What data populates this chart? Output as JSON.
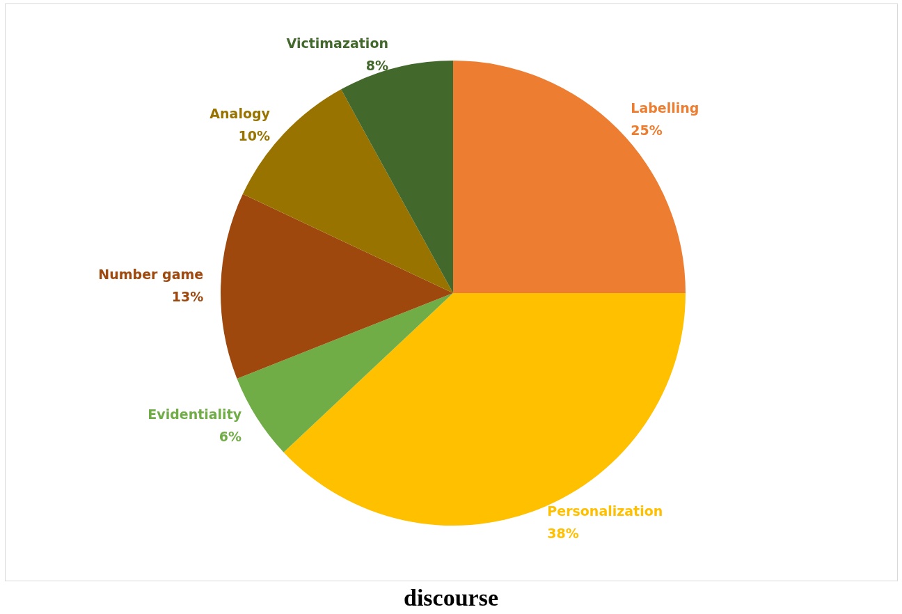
{
  "chart_data": {
    "type": "pie",
    "title": "discourse",
    "categories": [
      "Labelling",
      "Personalization",
      "Evidentiality",
      "Number game",
      "Analogy",
      "Victimazation"
    ],
    "values": [
      25,
      38,
      6,
      13,
      10,
      8
    ],
    "value_labels": [
      "25%",
      "38%",
      "6%",
      "13%",
      "10%",
      "8%"
    ],
    "colors": [
      "#ed7d31",
      "#ffc000",
      "#70ad47",
      "#9e480e",
      "#997300",
      "#43682b"
    ],
    "legend": false
  }
}
